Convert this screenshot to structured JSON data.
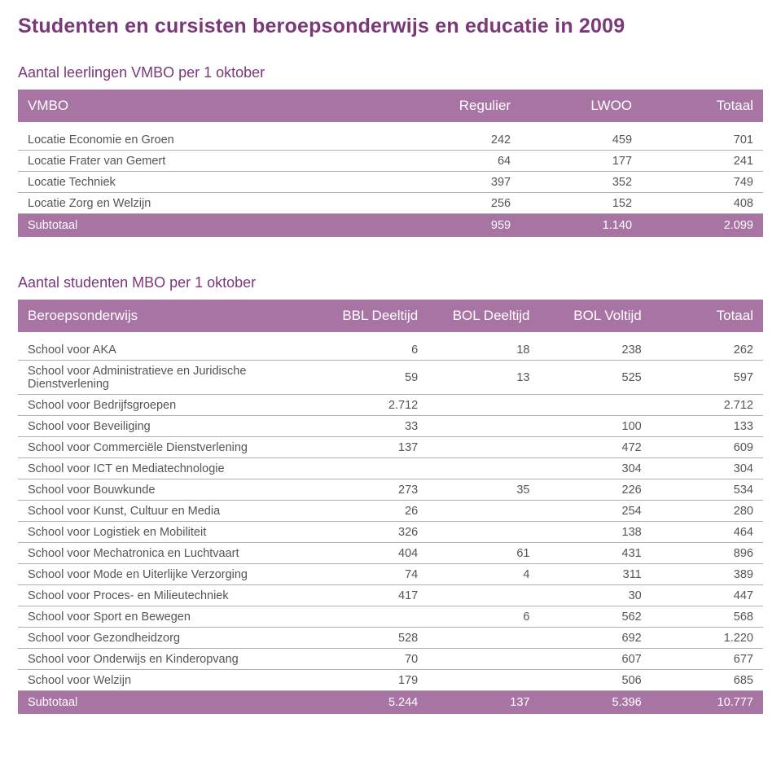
{
  "page": {
    "title": "Studenten en cursisten beroepsonderwijs en educatie in 2009"
  },
  "colors": {
    "accent": "#7a377a",
    "header_bg": "#a874a3",
    "header_fg": "#ffffff",
    "row_border": "#b0b0b0",
    "body_text": "#555555",
    "background": "#ffffff"
  },
  "typography": {
    "title_size_pt": 19,
    "section_size_pt": 13,
    "body_size_pt": 11,
    "font_family": "Arial"
  },
  "table1": {
    "title": "Aantal leerlingen VMBO per 1 oktober",
    "columns": [
      "VMBO",
      "Regulier",
      "LWOO",
      "Totaal"
    ],
    "rows": [
      {
        "label": "Locatie Economie en Groen",
        "v": [
          "242",
          "459",
          "701"
        ]
      },
      {
        "label": "Locatie Frater van Gemert",
        "v": [
          "64",
          "177",
          "241"
        ]
      },
      {
        "label": "Locatie Techniek",
        "v": [
          "397",
          "352",
          "749"
        ]
      },
      {
        "label": "Locatie Zorg en Welzijn",
        "v": [
          "256",
          "152",
          "408"
        ]
      }
    ],
    "subtotal": {
      "label": "Subtotaal",
      "v": [
        "959",
        "1.140",
        "2.099"
      ]
    }
  },
  "table2": {
    "title": "Aantal studenten MBO per 1 oktober",
    "columns": [
      "Beroepsonderwijs",
      "BBL Deeltijd",
      "BOL Deeltijd",
      "BOL Voltijd",
      "Totaal"
    ],
    "rows": [
      {
        "label": "School voor AKA",
        "v": [
          "6",
          "18",
          "238",
          "262"
        ]
      },
      {
        "label": "School voor Administratieve en Juridische Dienstverlening",
        "v": [
          "59",
          "13",
          "525",
          "597"
        ]
      },
      {
        "label": "School voor Bedrijfsgroepen",
        "v": [
          "2.712",
          "",
          "",
          "2.712"
        ]
      },
      {
        "label": "School voor Beveiliging",
        "v": [
          "33",
          "",
          "100",
          "133"
        ]
      },
      {
        "label": "School voor Commerciële Dienstverlening",
        "v": [
          "137",
          "",
          "472",
          "609"
        ]
      },
      {
        "label": "School voor ICT en Mediatechnologie",
        "v": [
          "",
          "",
          "304",
          "304"
        ]
      },
      {
        "label": "School voor Bouwkunde",
        "v": [
          "273",
          "35",
          "226",
          "534"
        ]
      },
      {
        "label": "School voor Kunst, Cultuur en Media",
        "v": [
          "26",
          "",
          "254",
          "280"
        ]
      },
      {
        "label": "School voor Logistiek en Mobiliteit",
        "v": [
          "326",
          "",
          "138",
          "464"
        ]
      },
      {
        "label": "School voor Mechatronica en Luchtvaart",
        "v": [
          "404",
          "61",
          "431",
          "896"
        ]
      },
      {
        "label": "School voor Mode en Uiterlijke Verzorging",
        "v": [
          "74",
          "4",
          "311",
          "389"
        ]
      },
      {
        "label": "School voor Proces- en Milieutechniek",
        "v": [
          "417",
          "",
          "30",
          "447"
        ]
      },
      {
        "label": "School voor Sport en Bewegen",
        "v": [
          "",
          "6",
          "562",
          "568"
        ]
      },
      {
        "label": "School voor Gezondheidzorg",
        "v": [
          "528",
          "",
          "692",
          "1.220"
        ]
      },
      {
        "label": "School voor Onderwijs en Kinderopvang",
        "v": [
          "70",
          "",
          "607",
          "677"
        ]
      },
      {
        "label": "School voor Welzijn",
        "v": [
          "179",
          "",
          "506",
          "685"
        ]
      }
    ],
    "subtotal": {
      "label": "Subtotaal",
      "v": [
        "5.244",
        "137",
        "5.396",
        "10.777"
      ]
    }
  }
}
